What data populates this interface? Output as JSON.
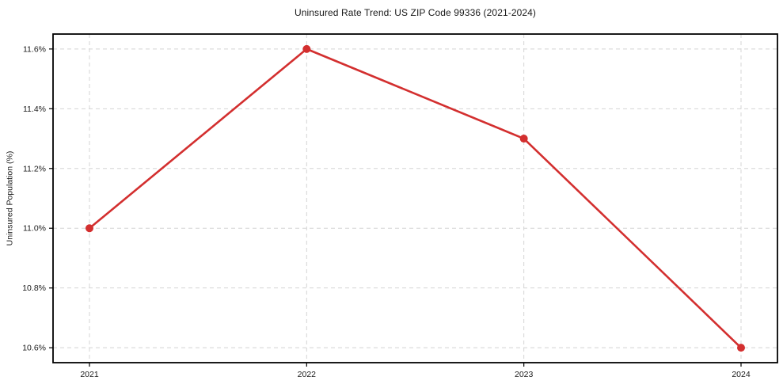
{
  "chart_data": {
    "type": "line",
    "title": "Uninsured Rate Trend: US ZIP Code 99336 (2021-2024)",
    "ylabel": "Uninsured Population (%)",
    "xlabel": "",
    "categories": [
      "2021",
      "2022",
      "2023",
      "2024"
    ],
    "series": [
      {
        "name": "Uninsured Population (%)",
        "values": [
          11.0,
          11.6,
          11.3,
          10.6
        ],
        "color": "#d32f2f",
        "marker": "circle"
      }
    ],
    "yticks": [
      10.6,
      10.8,
      11.0,
      11.2,
      11.4,
      11.6
    ],
    "ytick_labels": [
      "10.6%",
      "10.8%",
      "11.0%",
      "11.2%",
      "11.4%",
      "11.6%"
    ],
    "ylim": [
      10.55,
      11.65
    ],
    "grid": true,
    "grid_color": "#d4d4d4",
    "grid_style": "dashed",
    "axis_color": "#000000",
    "background": "#ffffff",
    "legend_position": "none"
  }
}
